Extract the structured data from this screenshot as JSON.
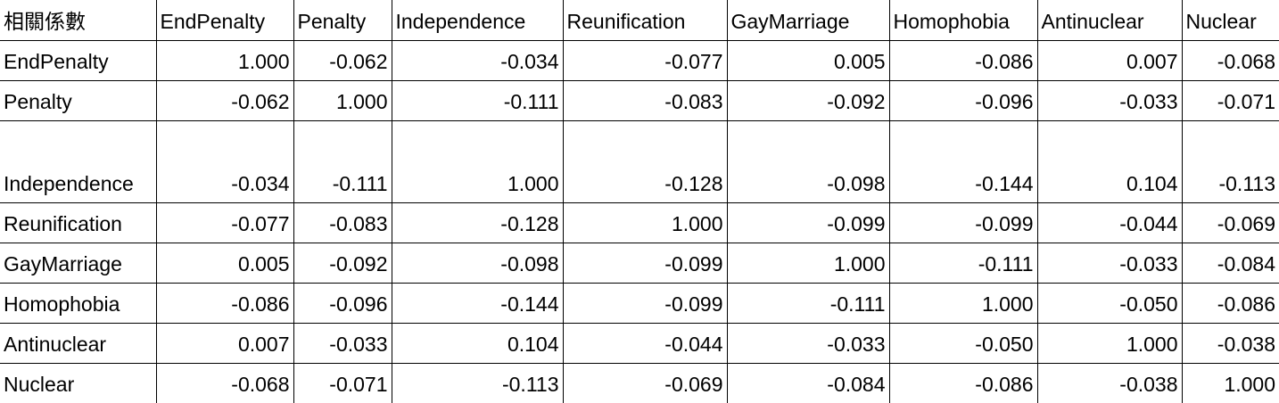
{
  "corner_label": "相關係數",
  "columns": [
    "EndPenalty",
    "Penalty",
    "Independence",
    "Reunification",
    "GayMarriage",
    "Homophobia",
    "Antinuclear",
    "Nuclear"
  ],
  "rows": [
    {
      "label": "EndPenalty",
      "values": [
        "1.000",
        "-0.062",
        "-0.034",
        "-0.077",
        "0.005",
        "-0.086",
        "0.007",
        "-0.068"
      ]
    },
    {
      "label": "Penalty",
      "values": [
        "-0.062",
        "1.000",
        "-0.111",
        "-0.083",
        "-0.092",
        "-0.096",
        "-0.033",
        "-0.071"
      ]
    },
    {
      "label": "Independence",
      "values": [
        "-0.034",
        "-0.111",
        "1.000",
        "-0.128",
        "-0.098",
        "-0.144",
        "0.104",
        "-0.113"
      ]
    },
    {
      "label": "Reunification",
      "values": [
        "-0.077",
        "-0.083",
        "-0.128",
        "1.000",
        "-0.099",
        "-0.099",
        "-0.044",
        "-0.069"
      ]
    },
    {
      "label": "GayMarriage",
      "values": [
        "0.005",
        "-0.092",
        "-0.098",
        "-0.099",
        "1.000",
        "-0.111",
        "-0.033",
        "-0.084"
      ]
    },
    {
      "label": "Homophobia",
      "values": [
        "-0.086",
        "-0.096",
        "-0.144",
        "-0.099",
        "-0.111",
        "1.000",
        "-0.050",
        "-0.086"
      ]
    },
    {
      "label": "Antinuclear",
      "values": [
        "0.007",
        "-0.033",
        "0.104",
        "-0.044",
        "-0.033",
        "-0.050",
        "1.000",
        "-0.038"
      ]
    },
    {
      "label": "Nuclear",
      "values": [
        "-0.068",
        "-0.071",
        "-0.113",
        "-0.069",
        "-0.084",
        "-0.086",
        "-0.038",
        "1.000"
      ]
    }
  ]
}
